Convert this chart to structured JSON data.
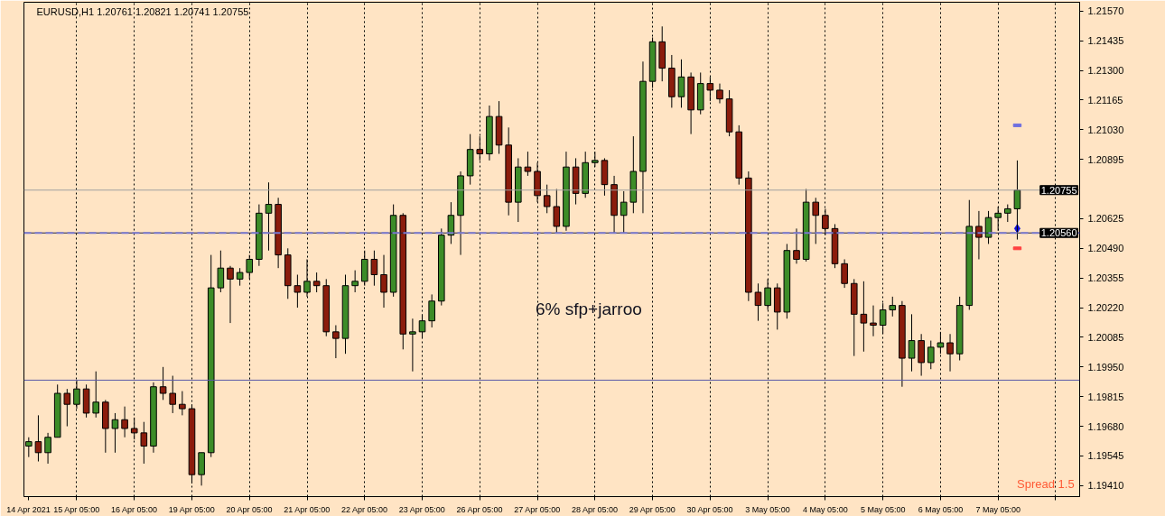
{
  "chart_data": {
    "type": "candlestick",
    "title": "EURUSD,H1 1.20761 1.20821 1.20741 1.20755",
    "annotations": [
      "6% sfp+jarroo",
      "Spread 1.5"
    ],
    "categories": [
      "14 Apr 2021",
      null,
      null,
      null,
      null,
      "15 Apr 05:00",
      null,
      null,
      null,
      null,
      null,
      "16 Apr 05:00",
      null,
      null,
      null,
      null,
      null,
      "19 Apr 05:00",
      null,
      null,
      null,
      null,
      null,
      "20 Apr 05:00",
      null,
      null,
      null,
      null,
      null,
      "21 Apr 05:00",
      null,
      null,
      null,
      null,
      null,
      "22 Apr 05:00",
      null,
      null,
      null,
      null,
      null,
      "23 Apr 05:00",
      null,
      null,
      null,
      null,
      null,
      "26 Apr 05:00",
      null,
      null,
      null,
      null,
      null,
      "27 Apr 05:00",
      null,
      null,
      null,
      null,
      null,
      "28 Apr 05:00",
      null,
      null,
      null,
      null,
      null,
      "29 Apr 05:00",
      null,
      null,
      null,
      null,
      null,
      "30 Apr 05:00",
      null,
      null,
      null,
      null,
      null,
      "3 May 05:00",
      null,
      null,
      null,
      null,
      null,
      "4 May 05:00",
      null,
      null,
      null,
      null,
      null,
      "5 May 05:00",
      null,
      null,
      null,
      null,
      null,
      "6 May 05:00",
      null,
      null,
      null,
      null,
      null,
      "7 May 05:00",
      null,
      null,
      null,
      null,
      null,
      null,
      null,
      null
    ],
    "ohlc": [
      [
        1.1959,
        1.1963,
        1.1954,
        1.1961
      ],
      [
        1.1961,
        1.1973,
        1.1952,
        1.1956
      ],
      [
        1.1956,
        1.1965,
        1.1951,
        1.1963
      ],
      [
        1.1963,
        1.1987,
        1.1963,
        1.1983
      ],
      [
        1.1983,
        1.1985,
        1.1968,
        1.1978
      ],
      [
        1.1978,
        1.1989,
        1.1976,
        1.1985
      ],
      [
        1.1985,
        1.1987,
        1.1972,
        1.1974
      ],
      [
        1.1974,
        1.1993,
        1.1972,
        1.1979
      ],
      [
        1.1979,
        1.198,
        1.1956,
        1.1967
      ],
      [
        1.1967,
        1.1974,
        1.1956,
        1.1971
      ],
      [
        1.1971,
        1.1977,
        1.1963,
        1.1967
      ],
      [
        1.1967,
        1.1972,
        1.1962,
        1.1965
      ],
      [
        1.1965,
        1.197,
        1.1951,
        1.1959
      ],
      [
        1.1959,
        1.1988,
        1.1956,
        1.1986
      ],
      [
        1.1986,
        1.1995,
        1.198,
        1.1983
      ],
      [
        1.1983,
        1.1991,
        1.1974,
        1.1978
      ],
      [
        1.1978,
        1.1984,
        1.1973,
        1.1976
      ],
      [
        1.1976,
        1.1978,
        1.1942,
        1.1946
      ],
      [
        1.1946,
        1.1956,
        1.1941,
        1.1956
      ],
      [
        1.1956,
        1.2046,
        1.1954,
        1.2031
      ],
      [
        1.2031,
        1.2048,
        1.2029,
        1.204
      ],
      [
        1.204,
        1.2041,
        1.2015,
        1.2035
      ],
      [
        1.2035,
        1.204,
        1.2032,
        1.2038
      ],
      [
        1.2038,
        1.2046,
        1.2035,
        1.2044
      ],
      [
        1.2044,
        1.2069,
        1.2041,
        1.2065
      ],
      [
        1.2065,
        1.2079,
        1.2048,
        1.2069
      ],
      [
        1.2069,
        1.2072,
        1.204,
        1.2046
      ],
      [
        1.2046,
        1.2049,
        1.2026,
        1.2032
      ],
      [
        1.2032,
        1.2037,
        1.2022,
        1.2029
      ],
      [
        1.2029,
        1.2044,
        1.2027,
        1.2034
      ],
      [
        1.2034,
        1.2038,
        1.2029,
        1.2032
      ],
      [
        1.2032,
        1.2035,
        1.2009,
        1.2011
      ],
      [
        1.2011,
        1.2014,
        1.1999,
        1.2008
      ],
      [
        1.2008,
        1.2037,
        1.2001,
        1.2032
      ],
      [
        1.2032,
        1.2039,
        1.2029,
        1.2034
      ],
      [
        1.2034,
        1.2048,
        1.2032,
        1.2044
      ],
      [
        1.2044,
        1.2048,
        1.2032,
        1.2037
      ],
      [
        1.2037,
        1.2046,
        1.2022,
        1.2029
      ],
      [
        1.2029,
        1.2069,
        1.2027,
        1.2064
      ],
      [
        1.2064,
        1.2065,
        1.2003,
        1.201
      ],
      [
        1.201,
        1.2017,
        1.1993,
        1.2011
      ],
      [
        1.2011,
        1.2019,
        1.2008,
        1.2016
      ],
      [
        1.2016,
        1.2028,
        1.2013,
        1.2025
      ],
      [
        1.2025,
        1.2058,
        1.2023,
        1.2055
      ],
      [
        1.2055,
        1.207,
        1.2051,
        1.2064
      ],
      [
        1.2064,
        1.2084,
        1.2046,
        1.2082
      ],
      [
        1.2082,
        1.2101,
        1.2078,
        1.2094
      ],
      [
        1.2094,
        1.21,
        1.2089,
        1.2092
      ],
      [
        1.2092,
        1.2114,
        1.2089,
        1.2109
      ],
      [
        1.2109,
        1.2116,
        1.2092,
        1.2096
      ],
      [
        1.2096,
        1.2104,
        1.2064,
        1.207
      ],
      [
        1.207,
        1.209,
        1.2061,
        1.2086
      ],
      [
        1.2086,
        1.2093,
        1.2082,
        1.2084
      ],
      [
        1.2084,
        1.2088,
        1.207,
        1.2073
      ],
      [
        1.2073,
        1.2078,
        1.2065,
        1.2068
      ],
      [
        1.2068,
        1.2076,
        1.2056,
        1.2059
      ],
      [
        1.2059,
        1.2093,
        1.2057,
        1.2086
      ],
      [
        1.2086,
        1.209,
        1.2069,
        1.2074
      ],
      [
        1.2074,
        1.2093,
        1.2072,
        1.2088
      ],
      [
        1.2088,
        1.2093,
        1.2086,
        1.2089
      ],
      [
        1.2089,
        1.209,
        1.2073,
        1.2078
      ],
      [
        1.2078,
        1.2082,
        1.2056,
        1.2064
      ],
      [
        1.2064,
        1.2075,
        1.2056,
        1.207
      ],
      [
        1.207,
        1.21,
        1.2065,
        1.2084
      ],
      [
        1.2084,
        1.2134,
        1.2065,
        1.2125
      ],
      [
        1.2125,
        1.2145,
        1.2122,
        1.2143
      ],
      [
        1.2143,
        1.215,
        1.2125,
        1.2131
      ],
      [
        1.2131,
        1.2137,
        1.2113,
        1.2118
      ],
      [
        1.2118,
        1.2135,
        1.2113,
        1.2127
      ],
      [
        1.2127,
        1.2129,
        1.2101,
        1.2112
      ],
      [
        1.2112,
        1.2129,
        1.211,
        1.2124
      ],
      [
        1.2124,
        1.2127,
        1.2116,
        1.2121
      ],
      [
        1.2121,
        1.2124,
        1.2115,
        1.2117
      ],
      [
        1.2117,
        1.2121,
        1.21,
        1.2102
      ],
      [
        1.2102,
        1.2105,
        1.2078,
        1.2081
      ],
      [
        1.2081,
        1.2084,
        1.2025,
        1.2029
      ],
      [
        1.2029,
        1.2033,
        1.2016,
        1.2023
      ],
      [
        1.2023,
        1.2035,
        1.2021,
        1.2031
      ],
      [
        1.2031,
        1.2033,
        1.2012,
        1.202
      ],
      [
        1.202,
        1.2051,
        1.2017,
        1.2048
      ],
      [
        1.2048,
        1.2058,
        1.2042,
        1.2044
      ],
      [
        1.2044,
        1.2076,
        1.2043,
        1.207
      ],
      [
        1.207,
        1.2072,
        1.2051,
        1.2064
      ],
      [
        1.2064,
        1.2067,
        1.2055,
        1.2058
      ],
      [
        1.2058,
        1.206,
        1.204,
        1.2042
      ],
      [
        1.2042,
        1.2044,
        1.2031,
        1.2033
      ],
      [
        1.2033,
        1.2035,
        1.2,
        1.2019
      ],
      [
        1.2019,
        1.2034,
        1.2002,
        1.2015
      ],
      [
        1.2015,
        1.2023,
        1.2009,
        1.2014
      ],
      [
        1.2014,
        1.2024,
        1.201,
        1.2021
      ],
      [
        1.2021,
        1.2027,
        1.2018,
        1.2023
      ],
      [
        1.2023,
        1.2025,
        1.1986,
        1.1999
      ],
      [
        1.1999,
        1.2019,
        1.1993,
        1.2007
      ],
      [
        1.2007,
        1.201,
        1.1991,
        1.1997
      ],
      [
        1.1997,
        1.2007,
        1.1994,
        1.2004
      ],
      [
        1.2004,
        1.2011,
        1.2001,
        1.2006
      ],
      [
        1.2006,
        1.201,
        1.1993,
        1.2001
      ],
      [
        1.2001,
        1.2027,
        1.1998,
        1.2023
      ],
      [
        1.2023,
        1.2071,
        1.2021,
        1.2059
      ],
      [
        1.2059,
        1.2066,
        1.2044,
        1.2054
      ],
      [
        1.2054,
        1.2066,
        1.2051,
        1.2063
      ],
      [
        1.2063,
        1.2068,
        1.2057,
        1.2065
      ],
      [
        1.2065,
        1.2069,
        1.2061,
        1.2067
      ],
      [
        1.2067,
        1.2089,
        1.2053,
        1.20755
      ],
      null,
      null,
      null,
      null,
      null,
      null
    ],
    "colors": [
      "#3c8c28",
      "#8b1c0c",
      "#3c8c28",
      "#3c8c28",
      "#8b1c0c",
      "#3c8c28",
      "#8b1c0c",
      "#3c8c28",
      "#8b1c0c",
      "#3c8c28",
      "#8b1c0c",
      "#8b1c0c",
      "#8b1c0c",
      "#3c8c28",
      "#8b1c0c",
      "#8b1c0c",
      "#8b1c0c",
      "#8b1c0c",
      "#3c8c28",
      "#3c8c28",
      "#3c8c28",
      "#8b1c0c",
      "#3c8c28",
      "#3c8c28",
      "#3c8c28",
      "#3c8c28",
      "#8b1c0c",
      "#8b1c0c",
      "#8b1c0c",
      "#3c8c28",
      "#8b1c0c",
      "#8b1c0c",
      "#8b1c0c",
      "#3c8c28",
      "#3c8c28",
      "#3c8c28",
      "#8b1c0c",
      "#8b1c0c",
      "#3c8c28",
      "#8b1c0c",
      "#3c8c28",
      "#3c8c28",
      "#3c8c28",
      "#3c8c28",
      "#3c8c28",
      "#3c8c28",
      "#3c8c28",
      "#8b1c0c",
      "#3c8c28",
      "#8b1c0c",
      "#8b1c0c",
      "#3c8c28",
      "#8b1c0c",
      "#8b1c0c",
      "#8b1c0c",
      "#8b1c0c",
      "#3c8c28",
      "#8b1c0c",
      "#3c8c28",
      "#3c8c28",
      "#8b1c0c",
      "#8b1c0c",
      "#3c8c28",
      "#3c8c28",
      "#3c8c28",
      "#3c8c28",
      "#8b1c0c",
      "#8b1c0c",
      "#3c8c28",
      "#8b1c0c",
      "#3c8c28",
      "#8b1c0c",
      "#8b1c0c",
      "#8b1c0c",
      "#8b1c0c",
      "#8b1c0c",
      "#8b1c0c",
      "#3c8c28",
      "#8b1c0c",
      "#3c8c28",
      "#8b1c0c",
      "#3c8c28",
      "#8b1c0c",
      "#8b1c0c",
      "#8b1c0c",
      "#8b1c0c",
      "#8b1c0c",
      "#8b1c0c",
      "#8b1c0c",
      "#3c8c28",
      "#3c8c28",
      "#8b1c0c",
      "#3c8c28",
      "#8b1c0c",
      "#3c8c28",
      "#3c8c28",
      "#8b1c0c",
      "#3c8c28",
      "#3c8c28",
      "#8b1c0c",
      "#3c8c28",
      "#3c8c28",
      "#3c8c28",
      "#3c8c28",
      null,
      null,
      null,
      null,
      null,
      null
    ],
    "series": [
      {
        "type": "scatter",
        "color": "#1010e0",
        "marker": "diamond",
        "values": [
          null,
          null,
          null,
          null,
          null,
          null,
          null,
          null,
          null,
          null,
          null,
          null,
          null,
          null,
          null,
          null,
          null,
          null,
          null,
          null,
          null,
          null,
          null,
          null,
          null,
          null,
          null,
          null,
          null,
          null,
          null,
          null,
          null,
          null,
          null,
          null,
          null,
          null,
          null,
          null,
          null,
          null,
          null,
          null,
          null,
          null,
          null,
          null,
          null,
          null,
          null,
          null,
          null,
          null,
          null,
          null,
          null,
          null,
          null,
          null,
          null,
          null,
          null,
          null,
          null,
          null,
          null,
          null,
          null,
          null,
          null,
          null,
          null,
          null,
          null,
          null,
          null,
          null,
          null,
          null,
          null,
          null,
          null,
          null,
          null,
          null,
          null,
          null,
          null,
          null,
          null,
          null,
          null,
          null,
          null,
          null,
          null,
          null,
          null,
          null,
          null,
          null,
          null,
          1.2058,
          null,
          null,
          null,
          null,
          null,
          null
        ]
      },
      {
        "type": "scatter",
        "color": "#6f6fe0",
        "marker": "square",
        "values": [
          null,
          null,
          null,
          null,
          null,
          null,
          null,
          null,
          null,
          null,
          null,
          null,
          null,
          null,
          null,
          null,
          null,
          null,
          null,
          null,
          null,
          null,
          null,
          null,
          null,
          null,
          null,
          null,
          null,
          null,
          null,
          null,
          null,
          null,
          null,
          null,
          null,
          null,
          null,
          null,
          null,
          null,
          null,
          null,
          null,
          null,
          null,
          null,
          null,
          null,
          null,
          null,
          null,
          null,
          null,
          null,
          null,
          null,
          null,
          null,
          null,
          null,
          null,
          null,
          null,
          null,
          null,
          null,
          null,
          null,
          null,
          null,
          null,
          null,
          null,
          null,
          null,
          null,
          null,
          null,
          null,
          null,
          null,
          null,
          null,
          null,
          null,
          null,
          null,
          null,
          null,
          null,
          null,
          null,
          null,
          null,
          null,
          null,
          null,
          null,
          null,
          null,
          null,
          1.2105,
          null,
          null,
          null,
          null,
          null,
          null
        ]
      },
      {
        "type": "scatter",
        "color": "#ff4040",
        "marker": "square",
        "values": [
          null,
          null,
          null,
          null,
          null,
          null,
          null,
          null,
          null,
          null,
          null,
          null,
          null,
          null,
          null,
          null,
          null,
          null,
          null,
          null,
          null,
          null,
          null,
          null,
          null,
          null,
          null,
          null,
          null,
          null,
          null,
          null,
          null,
          null,
          null,
          null,
          null,
          null,
          null,
          null,
          null,
          null,
          null,
          null,
          null,
          null,
          null,
          null,
          null,
          null,
          null,
          null,
          null,
          null,
          null,
          null,
          null,
          null,
          null,
          null,
          null,
          null,
          null,
          null,
          null,
          null,
          null,
          null,
          null,
          null,
          null,
          null,
          null,
          null,
          null,
          null,
          null,
          null,
          null,
          null,
          null,
          null,
          null,
          null,
          null,
          null,
          null,
          null,
          null,
          null,
          null,
          null,
          null,
          null,
          null,
          null,
          null,
          null,
          null,
          null,
          null,
          null,
          null,
          1.2049,
          null,
          null,
          null,
          null,
          null,
          null
        ]
      }
    ],
    "ylim": [
      1.1936,
      1.2161
    ],
    "yticks": [
      {
        "value": 1.2157,
        "label": "1.21570"
      },
      {
        "value": 1.21435,
        "label": "1.21435"
      },
      {
        "value": 1.213,
        "label": "1.21300"
      },
      {
        "value": 1.21165,
        "label": "1.21165"
      },
      {
        "value": 1.2103,
        "label": "1.21030"
      },
      {
        "value": 1.20895,
        "label": "1.20895"
      },
      {
        "value": 1.20625,
        "label": "1.20625"
      },
      {
        "value": 1.2049,
        "label": "1.20490"
      },
      {
        "value": 1.20355,
        "label": "1.20355"
      },
      {
        "value": 1.2022,
        "label": "1.20220"
      },
      {
        "value": 1.20085,
        "label": "1.20085"
      },
      {
        "value": 1.1995,
        "label": "1.19950"
      },
      {
        "value": 1.19815,
        "label": "1.19815"
      },
      {
        "value": 1.1968,
        "label": "1.19680"
      },
      {
        "value": 1.19545,
        "label": "1.19545"
      },
      {
        "value": 1.1941,
        "label": "1.19410"
      }
    ],
    "ref_lines": [
      {
        "axis": "y",
        "value": 1.20755,
        "label": "1.20755",
        "color": "#a0a0a0"
      },
      {
        "axis": "y",
        "value": 1.2056,
        "color": "#202040"
      },
      {
        "axis": "y",
        "value": 1.2056,
        "label": "1.20560",
        "color": "#7a7ad0",
        "line_style": "dashed"
      },
      {
        "axis": "y",
        "value": 1.1989,
        "color": "#5a5aa8"
      }
    ],
    "grid": "x"
  }
}
